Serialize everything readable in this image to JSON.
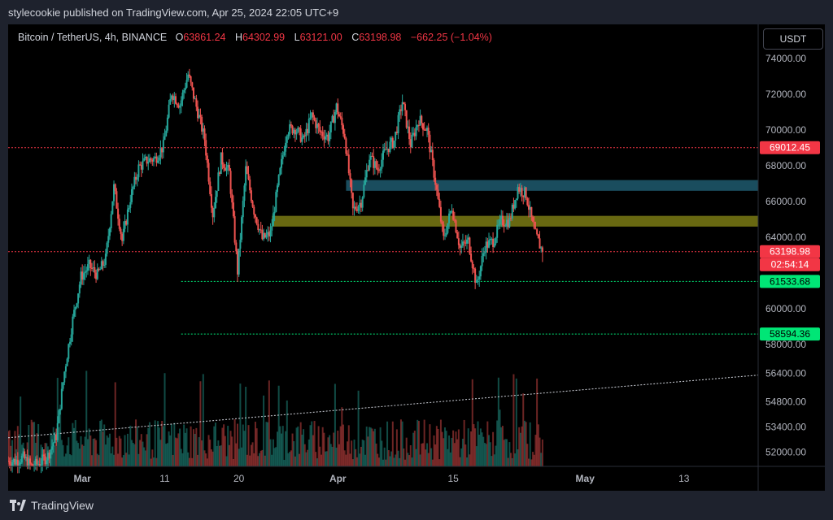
{
  "header": {
    "publisher": "stylecookie published on TradingView.com, Apr 25, 2024 22:05 UTC+9",
    "symbol": "Bitcoin / TetherUS, 4h, BINANCE",
    "o_label": "O",
    "o_value": "63861.24",
    "h_label": "H",
    "h_value": "64302.99",
    "l_label": "L",
    "l_value": "63121.00",
    "c_label": "C",
    "c_value": "63198.98",
    "change": "−662.25 (−1.04%)",
    "currency": "USDT"
  },
  "footer": {
    "brand": "TradingView",
    "logo_icon": "tradingview-logo-icon"
  },
  "colors": {
    "bg": "#000000",
    "up": "#26a69a",
    "down": "#ef5350",
    "resist": "#f23645",
    "support": "#00e676",
    "zone_blue": "#1e5a6e",
    "zone_yellow": "#7a7a14"
  },
  "chart_data": {
    "type": "candlestick",
    "title": "",
    "ylim": [
      51200,
      75900
    ],
    "y_ticks": [
      "74000.00",
      "72000.00",
      "70000.00",
      "68000.00",
      "66000.00",
      "64000.00",
      "60000.00",
      "58000.00",
      "56400.00",
      "54800.00",
      "53400.00",
      "52000.00"
    ],
    "x_ticks": [
      "Mar",
      "11",
      "20",
      "Apr",
      "15",
      "May",
      "13"
    ],
    "x_tick_dates": [
      "2024-03-01",
      "2024-03-11",
      "2024-03-20",
      "2024-04-01",
      "2024-04-15",
      "2024-05-01",
      "2024-05-13"
    ],
    "date_range": [
      "2024-02-21",
      "2024-05-22"
    ],
    "price_tags": [
      {
        "label": "69012.45",
        "color": "#f23645",
        "text": "#ffffff"
      },
      {
        "label": "63198.98",
        "color": "#f23645",
        "text": "#ffffff"
      },
      {
        "label": "02:54:14",
        "color": "#f23645",
        "text": "#ffffff"
      },
      {
        "label": "61533.68",
        "color": "#00e676",
        "text": "#000000"
      },
      {
        "label": "58594.36",
        "color": "#00e676",
        "text": "#000000"
      }
    ],
    "horizontal_lines": [
      {
        "price": 69012.45,
        "color": "#f23645",
        "from": "2024-02-21"
      },
      {
        "price": 63198.98,
        "color": "#f23645",
        "from": "2024-02-21"
      },
      {
        "price": 61533.68,
        "color": "#00e676",
        "from": "2024-03-13"
      },
      {
        "price": 58594.36,
        "color": "#00e676",
        "from": "2024-03-13"
      }
    ],
    "zones": [
      {
        "from": "2024-04-02",
        "to": "2024-05-22",
        "low": 66600,
        "high": 67200,
        "color": "#1e5a6e"
      },
      {
        "from": "2024-03-24",
        "to": "2024-05-22",
        "low": 64600,
        "high": 65200,
        "color": "#7a7a14"
      }
    ],
    "trendline": {
      "from": [
        "2024-02-21",
        52800
      ],
      "to": [
        "2024-05-22",
        56300
      ]
    },
    "closes_daily": [
      [
        "2024-02-21",
        51500
      ],
      [
        "2024-02-22",
        51700
      ],
      [
        "2024-02-23",
        51200
      ],
      [
        "2024-02-24",
        51400
      ],
      [
        "2024-02-25",
        51800
      ],
      [
        "2024-02-26",
        52900
      ],
      [
        "2024-02-27",
        56500
      ],
      [
        "2024-02-28",
        59400
      ],
      [
        "2024-02-29",
        61800
      ],
      [
        "2024-03-01",
        62400
      ],
      [
        "2024-03-02",
        61900
      ],
      [
        "2024-03-03",
        62800
      ],
      [
        "2024-03-04",
        66800
      ],
      [
        "2024-03-05",
        63800
      ],
      [
        "2024-03-06",
        66200
      ],
      [
        "2024-03-07",
        67900
      ],
      [
        "2024-03-08",
        68300
      ],
      [
        "2024-03-09",
        68400
      ],
      [
        "2024-03-10",
        69100
      ],
      [
        "2024-03-11",
        72100
      ],
      [
        "2024-03-12",
        71400
      ],
      [
        "2024-03-13",
        73100
      ],
      [
        "2024-03-14",
        71300
      ],
      [
        "2024-03-15",
        69500
      ],
      [
        "2024-03-16",
        65300
      ],
      [
        "2024-03-17",
        68400
      ],
      [
        "2024-03-18",
        67600
      ],
      [
        "2024-03-19",
        62100
      ],
      [
        "2024-03-20",
        67800
      ],
      [
        "2024-03-21",
        65500
      ],
      [
        "2024-03-22",
        63900
      ],
      [
        "2024-03-23",
        64200
      ],
      [
        "2024-03-24",
        67200
      ],
      [
        "2024-03-25",
        70000
      ],
      [
        "2024-03-26",
        70100
      ],
      [
        "2024-03-27",
        69400
      ],
      [
        "2024-03-28",
        70800
      ],
      [
        "2024-03-29",
        69900
      ],
      [
        "2024-03-30",
        69600
      ],
      [
        "2024-03-31",
        71300
      ],
      [
        "2024-04-01",
        69700
      ],
      [
        "2024-04-02",
        65500
      ],
      [
        "2024-04-03",
        66000
      ],
      [
        "2024-04-04",
        68500
      ],
      [
        "2024-04-05",
        67800
      ],
      [
        "2024-04-06",
        68900
      ],
      [
        "2024-04-07",
        69400
      ],
      [
        "2024-04-08",
        71600
      ],
      [
        "2024-04-09",
        69200
      ],
      [
        "2024-04-10",
        70600
      ],
      [
        "2024-04-11",
        70000
      ],
      [
        "2024-04-12",
        67100
      ],
      [
        "2024-04-13",
        63900
      ],
      [
        "2024-04-14",
        65700
      ],
      [
        "2024-04-15",
        63400
      ],
      [
        "2024-04-16",
        63800
      ],
      [
        "2024-04-17",
        61300
      ],
      [
        "2024-04-18",
        63500
      ],
      [
        "2024-04-19",
        63800
      ],
      [
        "2024-04-20",
        64900
      ],
      [
        "2024-04-21",
        64900
      ],
      [
        "2024-04-22",
        66800
      ],
      [
        "2024-04-23",
        66400
      ],
      [
        "2024-04-24",
        64300
      ],
      [
        "2024-04-25",
        63199
      ]
    ]
  }
}
